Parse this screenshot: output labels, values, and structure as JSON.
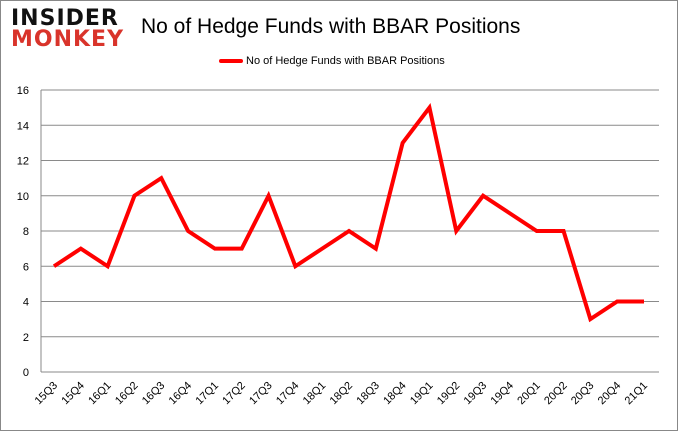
{
  "logo": {
    "line1": "INSIDER",
    "line2": "MONKEY"
  },
  "chart_data": {
    "type": "line",
    "title": "No of Hedge Funds with BBAR Positions",
    "xlabel": "",
    "ylabel": "",
    "categories": [
      "15Q3",
      "15Q4",
      "16Q1",
      "16Q2",
      "16Q3",
      "16Q4",
      "17Q1",
      "17Q2",
      "17Q3",
      "17Q4",
      "18Q1",
      "18Q2",
      "18Q3",
      "18Q4",
      "19Q1",
      "19Q2",
      "19Q3",
      "19Q4",
      "20Q1",
      "20Q2",
      "20Q3",
      "20Q4",
      "21Q1"
    ],
    "series": [
      {
        "name": "No of Hedge Funds with BBAR Positions",
        "values": [
          6,
          7,
          6,
          10,
          11,
          8,
          7,
          7,
          10,
          6,
          7,
          8,
          7,
          13,
          15,
          8,
          10,
          9,
          8,
          8,
          3,
          4,
          4
        ],
        "color": "#ff0000"
      }
    ],
    "ylim": [
      0,
      16
    ],
    "yticks": [
      0,
      2,
      4,
      6,
      8,
      10,
      12,
      14,
      16
    ],
    "grid": true,
    "legend": "top-center"
  }
}
